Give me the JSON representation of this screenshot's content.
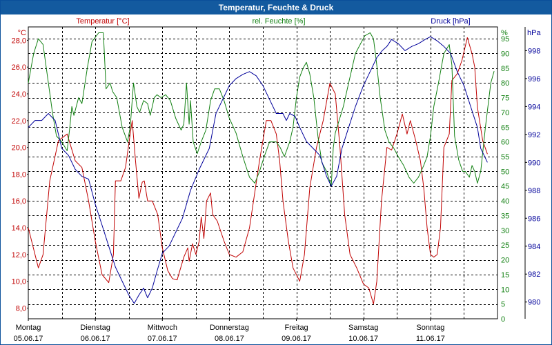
{
  "window": {
    "title": "Temperatur, Feuchte & Druck"
  },
  "colors": {
    "titlebar": "#135a9f",
    "temperature": "#c00000",
    "humidity": "#118011",
    "pressure": "#00009a",
    "grid": "#000000"
  },
  "chart_data": {
    "type": "line",
    "title": "Temperatur, Feuchte & Druck",
    "x_range_days": [
      0,
      7
    ],
    "grid": true,
    "day_ticks": [
      {
        "day": "Montag",
        "date": "05.06.17"
      },
      {
        "day": "Dienstag",
        "date": "06.06.17"
      },
      {
        "day": "Mittwoch",
        "date": "07.06.17"
      },
      {
        "day": "Donnerstag",
        "date": "08.06.17"
      },
      {
        "day": "Freitag",
        "date": "09.06.17"
      },
      {
        "day": "Samstag",
        "date": "10.06.17"
      },
      {
        "day": "Sonntag",
        "date": "11.06.17"
      }
    ],
    "axes": {
      "temperature": {
        "label": "Temperatur [°C]",
        "unit": "°C",
        "range": [
          7.2,
          29.0
        ],
        "ticks": [
          "8,0",
          "10,0",
          "12,0",
          "14,0",
          "16,0",
          "18,0",
          "20,0",
          "22,0",
          "24,0",
          "26,0",
          "28,0"
        ]
      },
      "humidity": {
        "label": "rel. Feuchte [%]",
        "unit": "%",
        "range": [
          0,
          99
        ],
        "ticks": [
          "0",
          "5",
          "10",
          "15",
          "20",
          "25",
          "30",
          "35",
          "40",
          "45",
          "50",
          "55",
          "60",
          "65",
          "70",
          "75",
          "80",
          "85",
          "90",
          "95"
        ]
      },
      "pressure": {
        "label": "Druck [hPa]",
        "unit": "hPa",
        "range": [
          978.8,
          999.7
        ],
        "ticks": [
          "980",
          "982",
          "984",
          "986",
          "988",
          "990",
          "992",
          "994",
          "996",
          "998"
        ]
      }
    },
    "series": [
      {
        "name": "Temperatur",
        "axis": "temperature",
        "points": [
          [
            0.0,
            14.0
          ],
          [
            0.08,
            12.4
          ],
          [
            0.15,
            11.0
          ],
          [
            0.22,
            12.0
          ],
          [
            0.32,
            17.5
          ],
          [
            0.45,
            20.5
          ],
          [
            0.58,
            21.0
          ],
          [
            0.7,
            19.0
          ],
          [
            0.8,
            18.5
          ],
          [
            0.9,
            16.0
          ],
          [
            1.0,
            13.0
          ],
          [
            1.1,
            10.5
          ],
          [
            1.2,
            9.9
          ],
          [
            1.27,
            12.0
          ],
          [
            1.3,
            17.5
          ],
          [
            1.38,
            17.5
          ],
          [
            1.45,
            18.5
          ],
          [
            1.52,
            21.0
          ],
          [
            1.55,
            22.0
          ],
          [
            1.6,
            19.0
          ],
          [
            1.65,
            16.2
          ],
          [
            1.7,
            17.4
          ],
          [
            1.73,
            17.5
          ],
          [
            1.78,
            16.0
          ],
          [
            1.85,
            16.0
          ],
          [
            1.93,
            15.0
          ],
          [
            2.0,
            12.5
          ],
          [
            2.08,
            10.8
          ],
          [
            2.15,
            10.2
          ],
          [
            2.22,
            10.1
          ],
          [
            2.32,
            11.8
          ],
          [
            2.38,
            12.5
          ],
          [
            2.4,
            11.5
          ],
          [
            2.45,
            12.8
          ],
          [
            2.5,
            12.0
          ],
          [
            2.55,
            13.0
          ],
          [
            2.58,
            14.8
          ],
          [
            2.62,
            13.2
          ],
          [
            2.66,
            16.0
          ],
          [
            2.72,
            16.6
          ],
          [
            2.75,
            15.0
          ],
          [
            2.82,
            14.5
          ],
          [
            2.92,
            13.0
          ],
          [
            3.0,
            12.0
          ],
          [
            3.1,
            11.8
          ],
          [
            3.2,
            12.2
          ],
          [
            3.3,
            14.0
          ],
          [
            3.45,
            19.0
          ],
          [
            3.55,
            22.0
          ],
          [
            3.62,
            22.0
          ],
          [
            3.7,
            21.0
          ],
          [
            3.75,
            19.0
          ],
          [
            3.8,
            16.0
          ],
          [
            3.88,
            13.0
          ],
          [
            3.95,
            11.0
          ],
          [
            4.05,
            10.0
          ],
          [
            4.12,
            12.0
          ],
          [
            4.2,
            17.0
          ],
          [
            4.3,
            20.0
          ],
          [
            4.4,
            22.0
          ],
          [
            4.5,
            24.8
          ],
          [
            4.58,
            24.0
          ],
          [
            4.65,
            20.0
          ],
          [
            4.72,
            15.0
          ],
          [
            4.8,
            12.0
          ],
          [
            4.9,
            11.0
          ],
          [
            5.0,
            9.8
          ],
          [
            5.08,
            9.5
          ],
          [
            5.15,
            8.3
          ],
          [
            5.2,
            10.0
          ],
          [
            5.27,
            16.0
          ],
          [
            5.35,
            20.0
          ],
          [
            5.42,
            19.8
          ],
          [
            5.5,
            21.0
          ],
          [
            5.58,
            22.5
          ],
          [
            5.65,
            21.0
          ],
          [
            5.7,
            22.0
          ],
          [
            5.78,
            20.5
          ],
          [
            5.85,
            19.0
          ],
          [
            5.9,
            17.0
          ],
          [
            5.95,
            14.0
          ],
          [
            6.0,
            12.0
          ],
          [
            6.05,
            11.8
          ],
          [
            6.1,
            12.0
          ],
          [
            6.15,
            14.0
          ],
          [
            6.2,
            20.0
          ],
          [
            6.28,
            21.0
          ],
          [
            6.32,
            25.0
          ],
          [
            6.4,
            25.5
          ],
          [
            6.47,
            26.5
          ],
          [
            6.55,
            28.2
          ],
          [
            6.62,
            27.0
          ],
          [
            6.66,
            26.0
          ],
          [
            6.7,
            23.0
          ],
          [
            6.78,
            20.5
          ],
          [
            6.85,
            19.5
          ]
        ]
      },
      {
        "name": "rel. Feuchte",
        "axis": "humidity",
        "points": [
          [
            0.0,
            80.0
          ],
          [
            0.08,
            90.0
          ],
          [
            0.15,
            95.0
          ],
          [
            0.22,
            93.0
          ],
          [
            0.3,
            80.0
          ],
          [
            0.36,
            70.0
          ],
          [
            0.42,
            62.0
          ],
          [
            0.5,
            60.0
          ],
          [
            0.58,
            57.0
          ],
          [
            0.62,
            65.0
          ],
          [
            0.65,
            72.0
          ],
          [
            0.68,
            69.0
          ],
          [
            0.75,
            75.0
          ],
          [
            0.8,
            73.0
          ],
          [
            0.88,
            85.0
          ],
          [
            0.95,
            94.0
          ],
          [
            1.05,
            97.0
          ],
          [
            1.12,
            97.0
          ],
          [
            1.16,
            78.0
          ],
          [
            1.22,
            80.0
          ],
          [
            1.26,
            77.0
          ],
          [
            1.32,
            75.0
          ],
          [
            1.4,
            65.0
          ],
          [
            1.48,
            60.0
          ],
          [
            1.52,
            65.0
          ],
          [
            1.57,
            80.0
          ],
          [
            1.62,
            72.0
          ],
          [
            1.66,
            70.0
          ],
          [
            1.72,
            74.0
          ],
          [
            1.78,
            73.0
          ],
          [
            1.82,
            69.0
          ],
          [
            1.88,
            75.0
          ],
          [
            1.92,
            76.0
          ],
          [
            1.98,
            75.0
          ],
          [
            2.05,
            76.0
          ],
          [
            2.12,
            74.0
          ],
          [
            2.2,
            68.0
          ],
          [
            2.28,
            64.0
          ],
          [
            2.32,
            66.0
          ],
          [
            2.36,
            80.0
          ],
          [
            2.4,
            66.0
          ],
          [
            2.42,
            74.0
          ],
          [
            2.46,
            60.0
          ],
          [
            2.52,
            56.0
          ],
          [
            2.58,
            60.0
          ],
          [
            2.65,
            64.0
          ],
          [
            2.72,
            74.0
          ],
          [
            2.78,
            78.0
          ],
          [
            2.85,
            78.0
          ],
          [
            2.92,
            74.0
          ],
          [
            3.0,
            68.0
          ],
          [
            3.1,
            63.0
          ],
          [
            3.2,
            55.0
          ],
          [
            3.3,
            48.0
          ],
          [
            3.38,
            46.0
          ],
          [
            3.45,
            50.0
          ],
          [
            3.52,
            55.0
          ],
          [
            3.6,
            60.0
          ],
          [
            3.7,
            60.0
          ],
          [
            3.76,
            58.0
          ],
          [
            3.82,
            55.0
          ],
          [
            3.9,
            60.0
          ],
          [
            3.95,
            65.0
          ],
          [
            4.0,
            75.0
          ],
          [
            4.05,
            82.0
          ],
          [
            4.1,
            85.0
          ],
          [
            4.15,
            87.0
          ],
          [
            4.2,
            83.0
          ],
          [
            4.26,
            75.0
          ],
          [
            4.32,
            62.0
          ],
          [
            4.38,
            53.0
          ],
          [
            4.45,
            50.0
          ],
          [
            4.52,
            45.0
          ],
          [
            4.55,
            58.0
          ],
          [
            4.58,
            63.0
          ],
          [
            4.62,
            66.0
          ],
          [
            4.7,
            72.0
          ],
          [
            4.78,
            80.0
          ],
          [
            4.88,
            90.0
          ],
          [
            4.95,
            93.0
          ],
          [
            5.02,
            96.0
          ],
          [
            5.1,
            97.0
          ],
          [
            5.15,
            95.0
          ],
          [
            5.2,
            86.0
          ],
          [
            5.25,
            75.0
          ],
          [
            5.32,
            64.0
          ],
          [
            5.38,
            60.0
          ],
          [
            5.45,
            58.0
          ],
          [
            5.52,
            55.0
          ],
          [
            5.6,
            52.0
          ],
          [
            5.68,
            48.0
          ],
          [
            5.75,
            46.0
          ],
          [
            5.82,
            48.0
          ],
          [
            5.9,
            52.0
          ],
          [
            5.95,
            55.0
          ],
          [
            6.0,
            62.0
          ],
          [
            6.05,
            72.0
          ],
          [
            6.12,
            80.0
          ],
          [
            6.2,
            90.0
          ],
          [
            6.28,
            93.0
          ],
          [
            6.32,
            86.0
          ],
          [
            6.36,
            62.0
          ],
          [
            6.42,
            54.0
          ],
          [
            6.48,
            50.0
          ],
          [
            6.52,
            50.0
          ],
          [
            6.58,
            48.0
          ],
          [
            6.62,
            52.0
          ],
          [
            6.66,
            50.0
          ],
          [
            6.7,
            46.0
          ],
          [
            6.75,
            50.0
          ],
          [
            6.82,
            65.0
          ],
          [
            6.9,
            80.0
          ],
          [
            6.95,
            84.0
          ]
        ]
      },
      {
        "name": "Druck",
        "axis": "pressure",
        "points": [
          [
            0.0,
            992.5
          ],
          [
            0.1,
            993.0
          ],
          [
            0.2,
            993.0
          ],
          [
            0.3,
            993.5
          ],
          [
            0.4,
            993.0
          ],
          [
            0.5,
            991.0
          ],
          [
            0.6,
            990.5
          ],
          [
            0.7,
            989.5
          ],
          [
            0.8,
            989.0
          ],
          [
            0.9,
            988.8
          ],
          [
            1.0,
            987.0
          ],
          [
            1.1,
            985.5
          ],
          [
            1.2,
            984.0
          ],
          [
            1.3,
            982.5
          ],
          [
            1.4,
            981.5
          ],
          [
            1.5,
            980.5
          ],
          [
            1.58,
            979.9
          ],
          [
            1.65,
            980.5
          ],
          [
            1.72,
            981.0
          ],
          [
            1.78,
            980.3
          ],
          [
            1.85,
            981.0
          ],
          [
            1.92,
            982.2
          ],
          [
            2.0,
            983.5
          ],
          [
            2.1,
            984.0
          ],
          [
            2.2,
            985.0
          ],
          [
            2.3,
            986.0
          ],
          [
            2.42,
            988.0
          ],
          [
            2.55,
            989.5
          ],
          [
            2.7,
            991.0
          ],
          [
            2.8,
            993.5
          ],
          [
            2.9,
            994.5
          ],
          [
            3.0,
            995.5
          ],
          [
            3.1,
            996.0
          ],
          [
            3.2,
            996.3
          ],
          [
            3.3,
            996.5
          ],
          [
            3.4,
            996.2
          ],
          [
            3.5,
            995.5
          ],
          [
            3.6,
            994.5
          ],
          [
            3.7,
            993.5
          ],
          [
            3.8,
            993.5
          ],
          [
            3.85,
            993.0
          ],
          [
            3.9,
            993.5
          ],
          [
            3.98,
            993.3
          ],
          [
            4.05,
            992.5
          ],
          [
            4.15,
            991.5
          ],
          [
            4.25,
            991.0
          ],
          [
            4.35,
            990.5
          ],
          [
            4.45,
            989.0
          ],
          [
            4.52,
            988.3
          ],
          [
            4.6,
            989.0
          ],
          [
            4.68,
            991.0
          ],
          [
            4.78,
            992.5
          ],
          [
            4.88,
            994.0
          ],
          [
            5.0,
            995.5
          ],
          [
            5.1,
            996.5
          ],
          [
            5.2,
            997.5
          ],
          [
            5.28,
            998.0
          ],
          [
            5.35,
            998.3
          ],
          [
            5.42,
            998.8
          ],
          [
            5.52,
            998.5
          ],
          [
            5.62,
            998.0
          ],
          [
            5.72,
            998.3
          ],
          [
            5.82,
            998.5
          ],
          [
            5.92,
            998.8
          ],
          [
            6.0,
            999.0
          ],
          [
            6.1,
            998.7
          ],
          [
            6.2,
            998.3
          ],
          [
            6.3,
            997.8
          ],
          [
            6.4,
            996.5
          ],
          [
            6.5,
            995.5
          ],
          [
            6.6,
            994.0
          ],
          [
            6.7,
            992.5
          ],
          [
            6.75,
            991.0
          ],
          [
            6.8,
            990.5
          ],
          [
            6.85,
            990.0
          ]
        ]
      }
    ]
  }
}
